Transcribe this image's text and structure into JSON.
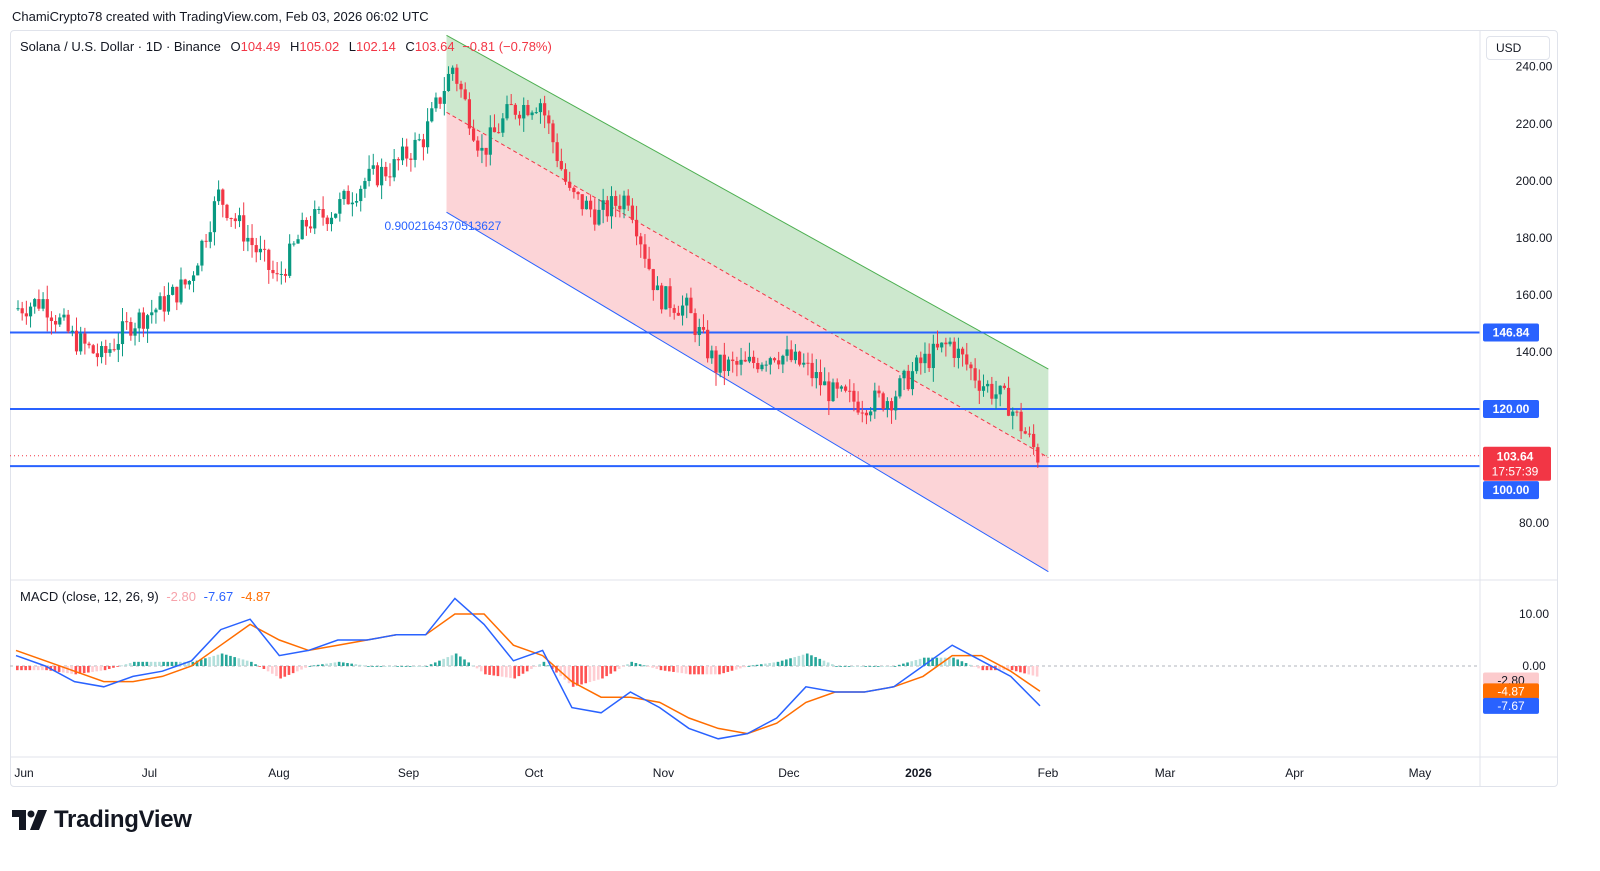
{
  "header": {
    "attribution": "ChamiCrypto78 created with TradingView.com, Feb 03, 2026 06:02 UTC"
  },
  "legend": {
    "symbol": "Solana / U.S. Dollar · 1D · Binance",
    "o_label": "O",
    "o": "104.49",
    "h_label": "H",
    "h": "105.02",
    "l_label": "L",
    "l": "102.14",
    "c_label": "C",
    "c": "103.64",
    "change": "−0.81 (−0.78%)"
  },
  "currency_button": "USD",
  "logo_text": "TradingView",
  "colors": {
    "up": "#089981",
    "down": "#f23645",
    "level": "#2962ff",
    "macd": "#2962ff",
    "signal": "#ff6d00",
    "channel_up": "#c8e6c9",
    "channel_down": "#fccfd3"
  },
  "chart_data": [
    {
      "type": "candlestick",
      "symbol": "Solana / U.S. Dollar",
      "interval": "1D",
      "exchange": "Binance",
      "x_ticks": [
        "Jun",
        "Jul",
        "Aug",
        "Sep",
        "Oct",
        "Nov",
        "Dec",
        "2026",
        "Feb",
        "Mar",
        "Apr",
        "May"
      ],
      "y_ticks": [
        "240.00",
        "220.00",
        "200.00",
        "180.00",
        "160.00",
        "140.00",
        "80.00"
      ],
      "ylim": [
        60,
        248
      ],
      "last_price": "103.64",
      "countdown": "17:57:39",
      "horizontal_levels": [
        {
          "value": 146.84,
          "label": "146.84"
        },
        {
          "value": 120.0,
          "label": "120.00"
        },
        {
          "value": 100.0,
          "label": "100.00"
        }
      ],
      "channel": {
        "top_line": [
          {
            "date": "2025-09-12",
            "price": 251
          },
          {
            "date": "2026-02-03",
            "price": 134
          }
        ],
        "mid_line": [
          {
            "date": "2025-09-12",
            "price": 224
          },
          {
            "date": "2026-02-03",
            "price": 103
          }
        ],
        "bottom_line": [
          {
            "date": "2025-09-12",
            "price": 189
          },
          {
            "date": "2026-02-03",
            "price": 63
          }
        ],
        "fib_label": "0.9002164370513627"
      },
      "closes_weekly": [
        {
          "date": "2025-06-01",
          "price": 155
        },
        {
          "date": "2025-06-08",
          "price": 158
        },
        {
          "date": "2025-06-15",
          "price": 145
        },
        {
          "date": "2025-06-22",
          "price": 138
        },
        {
          "date": "2025-06-29",
          "price": 150
        },
        {
          "date": "2025-07-06",
          "price": 156
        },
        {
          "date": "2025-07-13",
          "price": 165
        },
        {
          "date": "2025-07-20",
          "price": 195
        },
        {
          "date": "2025-07-27",
          "price": 180
        },
        {
          "date": "2025-08-03",
          "price": 165
        },
        {
          "date": "2025-08-10",
          "price": 185
        },
        {
          "date": "2025-08-17",
          "price": 190
        },
        {
          "date": "2025-08-24",
          "price": 200
        },
        {
          "date": "2025-08-31",
          "price": 205
        },
        {
          "date": "2025-09-07",
          "price": 215
        },
        {
          "date": "2025-09-14",
          "price": 240
        },
        {
          "date": "2025-09-21",
          "price": 210
        },
        {
          "date": "2025-09-28",
          "price": 225
        },
        {
          "date": "2025-10-05",
          "price": 228
        },
        {
          "date": "2025-10-12",
          "price": 195
        },
        {
          "date": "2025-10-19",
          "price": 188
        },
        {
          "date": "2025-10-26",
          "price": 195
        },
        {
          "date": "2025-11-02",
          "price": 160
        },
        {
          "date": "2025-11-09",
          "price": 155
        },
        {
          "date": "2025-11-16",
          "price": 135
        },
        {
          "date": "2025-11-23",
          "price": 135
        },
        {
          "date": "2025-11-30",
          "price": 140
        },
        {
          "date": "2025-12-07",
          "price": 135
        },
        {
          "date": "2025-12-14",
          "price": 125
        },
        {
          "date": "2025-12-21",
          "price": 122
        },
        {
          "date": "2025-12-28",
          "price": 124
        },
        {
          "date": "2026-01-04",
          "price": 136
        },
        {
          "date": "2026-01-11",
          "price": 143
        },
        {
          "date": "2026-01-18",
          "price": 130
        },
        {
          "date": "2026-01-25",
          "price": 122
        },
        {
          "date": "2026-02-01",
          "price": 103.64
        }
      ]
    },
    {
      "type": "line",
      "title": "MACD (close, 12, 26, 9)",
      "legend_values": [
        "-2.80",
        "-7.67",
        "-4.87"
      ],
      "y_ticks": [
        "10.00",
        "0.00"
      ],
      "ylim": [
        -15,
        14
      ],
      "labels": {
        "histogram": "-2.80",
        "signal": "-4.87",
        "macd": "-7.67"
      },
      "macd_weekly": [
        {
          "date": "2025-06-01",
          "value": 2
        },
        {
          "date": "2025-06-08",
          "value": 0
        },
        {
          "date": "2025-06-15",
          "value": -3
        },
        {
          "date": "2025-06-22",
          "value": -4
        },
        {
          "date": "2025-06-29",
          "value": -2
        },
        {
          "date": "2025-07-06",
          "value": -1
        },
        {
          "date": "2025-07-13",
          "value": 1
        },
        {
          "date": "2025-07-20",
          "value": 7
        },
        {
          "date": "2025-07-27",
          "value": 9
        },
        {
          "date": "2025-08-03",
          "value": 2
        },
        {
          "date": "2025-08-10",
          "value": 3
        },
        {
          "date": "2025-08-17",
          "value": 5
        },
        {
          "date": "2025-08-24",
          "value": 5
        },
        {
          "date": "2025-08-31",
          "value": 6
        },
        {
          "date": "2025-09-07",
          "value": 6
        },
        {
          "date": "2025-09-14",
          "value": 13
        },
        {
          "date": "2025-09-21",
          "value": 8
        },
        {
          "date": "2025-09-28",
          "value": 1
        },
        {
          "date": "2025-10-05",
          "value": 3
        },
        {
          "date": "2025-10-12",
          "value": -8
        },
        {
          "date": "2025-10-19",
          "value": -9
        },
        {
          "date": "2025-10-26",
          "value": -5
        },
        {
          "date": "2025-11-02",
          "value": -8
        },
        {
          "date": "2025-11-09",
          "value": -12
        },
        {
          "date": "2025-11-16",
          "value": -14
        },
        {
          "date": "2025-11-23",
          "value": -13
        },
        {
          "date": "2025-11-30",
          "value": -10
        },
        {
          "date": "2025-12-07",
          "value": -4
        },
        {
          "date": "2025-12-14",
          "value": -5
        },
        {
          "date": "2025-12-21",
          "value": -5
        },
        {
          "date": "2025-12-28",
          "value": -4
        },
        {
          "date": "2026-01-04",
          "value": 0
        },
        {
          "date": "2026-01-11",
          "value": 4
        },
        {
          "date": "2026-01-18",
          "value": 1
        },
        {
          "date": "2026-01-25",
          "value": -2
        },
        {
          "date": "2026-02-01",
          "value": -7.67
        }
      ],
      "signal_weekly": [
        {
          "date": "2025-06-01",
          "value": 3
        },
        {
          "date": "2025-06-08",
          "value": 1
        },
        {
          "date": "2025-06-15",
          "value": -1
        },
        {
          "date": "2025-06-22",
          "value": -3
        },
        {
          "date": "2025-06-29",
          "value": -3
        },
        {
          "date": "2025-07-06",
          "value": -2
        },
        {
          "date": "2025-07-13",
          "value": 0
        },
        {
          "date": "2025-07-20",
          "value": 4
        },
        {
          "date": "2025-07-27",
          "value": 8
        },
        {
          "date": "2025-08-03",
          "value": 5
        },
        {
          "date": "2025-08-10",
          "value": 3
        },
        {
          "date": "2025-08-17",
          "value": 4
        },
        {
          "date": "2025-08-24",
          "value": 5
        },
        {
          "date": "2025-08-31",
          "value": 6
        },
        {
          "date": "2025-09-07",
          "value": 6
        },
        {
          "date": "2025-09-14",
          "value": 10
        },
        {
          "date": "2025-09-21",
          "value": 10
        },
        {
          "date": "2025-09-28",
          "value": 4
        },
        {
          "date": "2025-10-05",
          "value": 2
        },
        {
          "date": "2025-10-12",
          "value": -3
        },
        {
          "date": "2025-10-19",
          "value": -6
        },
        {
          "date": "2025-10-26",
          "value": -6
        },
        {
          "date": "2025-11-02",
          "value": -7
        },
        {
          "date": "2025-11-09",
          "value": -10
        },
        {
          "date": "2025-11-16",
          "value": -12
        },
        {
          "date": "2025-11-23",
          "value": -13
        },
        {
          "date": "2025-11-30",
          "value": -11
        },
        {
          "date": "2025-12-07",
          "value": -7
        },
        {
          "date": "2025-12-14",
          "value": -5
        },
        {
          "date": "2025-12-21",
          "value": -5
        },
        {
          "date": "2025-12-28",
          "value": -4
        },
        {
          "date": "2026-01-04",
          "value": -2
        },
        {
          "date": "2026-01-11",
          "value": 2
        },
        {
          "date": "2026-01-18",
          "value": 2
        },
        {
          "date": "2026-01-25",
          "value": -1
        },
        {
          "date": "2026-02-01",
          "value": -4.87
        }
      ]
    }
  ]
}
